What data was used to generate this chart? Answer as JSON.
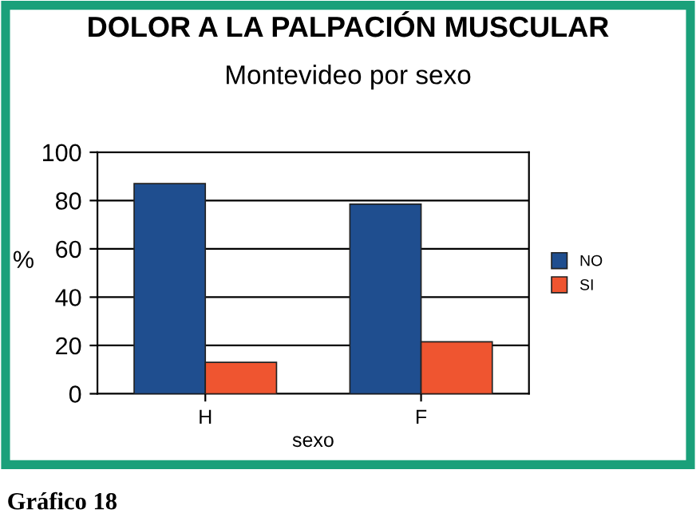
{
  "chart_data": {
    "type": "bar",
    "title": "DOLOR A LA PALPACIÓN MUSCULAR",
    "subtitle": "Montevideo por sexo",
    "xlabel": "sexo",
    "ylabel": "%",
    "categories": [
      "H",
      "F"
    ],
    "series": [
      {
        "name": "NO",
        "color": "#1f4e8f",
        "values": [
          87,
          78.5
        ]
      },
      {
        "name": "SI",
        "color": "#ef5530",
        "values": [
          13,
          21.5
        ]
      }
    ],
    "ylim": [
      0,
      100
    ],
    "yticks": [
      0,
      20,
      40,
      60,
      80,
      100
    ],
    "grid": "y",
    "legend": "right",
    "annotations": [
      "Gráfico 18"
    ]
  }
}
